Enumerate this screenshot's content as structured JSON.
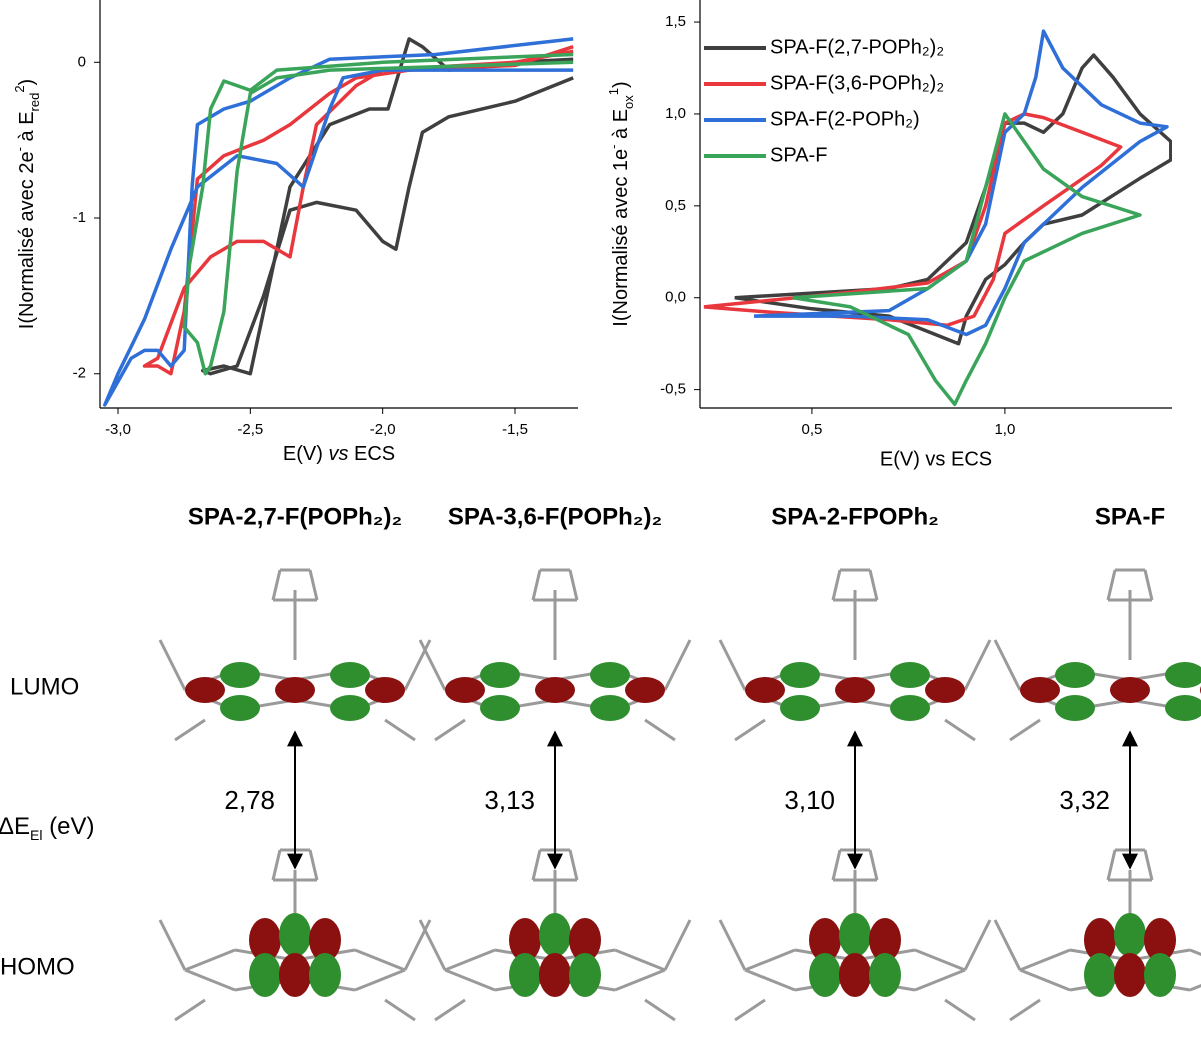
{
  "chart_data": [
    {
      "type": "line",
      "ylabel": [
        "I(Normalisé avec 2e",
        "-",
        " à E",
        "red",
        "2",
        ")"
      ],
      "xlabel": [
        "E(V) ",
        "vs",
        " ECS"
      ],
      "xlim": [
        -3.068,
        -1.262
      ],
      "ylim": [
        -2.22,
        0.4
      ],
      "xticks": [
        {
          "value": -3,
          "label": "-3,0"
        },
        {
          "value": -2.5,
          "label": "-2,5"
        },
        {
          "value": -2,
          "label": "-2,0"
        },
        {
          "value": -1.5,
          "label": "-1,5"
        }
      ],
      "yticks": [
        0,
        -1,
        -2
      ],
      "series": [
        {
          "color": "#3f3f3f",
          "x": [
            -1.28,
            -1.5,
            -1.75,
            -1.85,
            -1.9,
            -1.95,
            -2.0,
            -2.1,
            -2.25,
            -2.35,
            -2.45,
            -2.55,
            -2.65,
            -2.68,
            -2.6,
            -2.5,
            -2.45,
            -2.35,
            -2.2,
            -2.05,
            -1.98,
            -1.9,
            -1.85,
            -1.75,
            -1.5,
            -1.28
          ],
          "values": [
            -0.1,
            -0.25,
            -0.35,
            -0.45,
            -0.8,
            -1.2,
            -1.15,
            -0.95,
            -0.9,
            -0.95,
            -1.5,
            -1.95,
            -2.0,
            -1.98,
            -1.95,
            -2.0,
            -1.6,
            -0.8,
            -0.4,
            -0.3,
            -0.3,
            0.15,
            0.1,
            -0.05,
            0.0,
            0.02
          ]
        },
        {
          "color": "#e8383d",
          "x": [
            -1.28,
            -1.5,
            -1.9,
            -2.1,
            -2.2,
            -2.35,
            -2.45,
            -2.6,
            -2.7,
            -2.75,
            -2.8,
            -2.85,
            -2.9,
            -2.85,
            -2.75,
            -2.65,
            -2.55,
            -2.45,
            -2.35,
            -2.3,
            -2.25,
            -2.1,
            -2.0,
            -1.5,
            -1.28
          ],
          "values": [
            0.1,
            -0.02,
            -0.05,
            -0.1,
            -0.2,
            -0.4,
            -0.5,
            -0.6,
            -0.75,
            -1.6,
            -2.0,
            -1.95,
            -1.95,
            -1.9,
            -1.45,
            -1.25,
            -1.15,
            -1.15,
            -1.25,
            -0.8,
            -0.4,
            -0.15,
            -0.05,
            0.0,
            0.07
          ]
        },
        {
          "color": "#2f6fd8",
          "x": [
            -1.28,
            -2.0,
            -2.15,
            -2.2,
            -2.3,
            -2.4,
            -2.55,
            -2.7,
            -2.8,
            -2.9,
            -3.0,
            -3.05,
            -2.95,
            -2.9,
            -2.85,
            -2.8,
            -2.75,
            -2.72,
            -2.7,
            -2.6,
            -2.5,
            -2.35,
            -2.2,
            -1.8,
            -1.28
          ],
          "values": [
            -0.05,
            -0.05,
            -0.1,
            -0.3,
            -0.8,
            -0.65,
            -0.6,
            -0.8,
            -1.2,
            -1.65,
            -2.0,
            -2.2,
            -1.9,
            -1.85,
            -1.85,
            -1.95,
            -1.85,
            -0.8,
            -0.4,
            -0.3,
            -0.25,
            -0.1,
            0.02,
            0.05,
            0.15
          ]
        },
        {
          "color": "#3aa55a",
          "x": [
            -1.28,
            -2.2,
            -2.4,
            -2.5,
            -2.55,
            -2.6,
            -2.65,
            -2.67,
            -2.7,
            -2.75,
            -2.73,
            -2.68,
            -2.65,
            -2.6,
            -2.55,
            -2.5,
            -2.4,
            -2.0,
            -1.28
          ],
          "values": [
            0.0,
            -0.05,
            -0.1,
            -0.2,
            -0.7,
            -1.6,
            -1.95,
            -2.0,
            -1.8,
            -1.7,
            -1.3,
            -0.8,
            -0.3,
            -0.12,
            -0.15,
            -0.18,
            -0.05,
            0.0,
            0.05
          ]
        }
      ]
    },
    {
      "type": "line",
      "ylabel": [
        "I(Normalisé avec 1e",
        "-",
        " à E",
        "ox",
        "1",
        ")"
      ],
      "xlabel": "E(V) vs ECS",
      "xlim": [
        0.21,
        1.433
      ],
      "ylim": [
        -0.6,
        1.62
      ],
      "xticks": [
        {
          "value": 0.5,
          "label": "0,5"
        },
        {
          "value": 1,
          "label": "1,0"
        }
      ],
      "yticks": [
        {
          "value": 1.5,
          "label": "1,5"
        },
        {
          "value": 1,
          "label": "1,0"
        },
        {
          "value": 0.5,
          "label": "0,5"
        },
        {
          "value": 0,
          "label": "0,0"
        },
        {
          "value": -0.5,
          "label": "-0,5"
        }
      ],
      "legend": "upper left",
      "series": [
        {
          "name": "SPA-F(2,7-POPh₂)₂",
          "color": "#3f3f3f",
          "x": [
            0.3,
            0.7,
            0.8,
            0.9,
            0.95,
            1.0,
            1.05,
            1.1,
            1.15,
            1.2,
            1.23,
            1.28,
            1.35,
            1.43,
            1.43,
            1.35,
            1.2,
            1.1,
            1.05,
            1.0,
            0.95,
            0.9,
            0.88,
            0.82,
            0.7,
            0.5,
            0.3
          ],
          "values": [
            0.0,
            0.05,
            0.1,
            0.3,
            0.6,
            0.95,
            0.95,
            0.9,
            1.0,
            1.25,
            1.32,
            1.2,
            1.0,
            0.85,
            0.75,
            0.65,
            0.45,
            0.4,
            0.3,
            0.18,
            0.1,
            -0.1,
            -0.25,
            -0.2,
            -0.1,
            -0.06,
            0.0
          ]
        },
        {
          "name": "SPA-F(3,6-POPh₂)₂",
          "color": "#e8383d",
          "x": [
            0.22,
            0.6,
            0.8,
            0.9,
            0.95,
            1.0,
            1.05,
            1.1,
            1.2,
            1.3,
            1.25,
            1.1,
            1.0,
            0.97,
            0.92,
            0.85,
            0.7,
            0.4,
            0.22
          ],
          "values": [
            -0.05,
            0.03,
            0.08,
            0.2,
            0.5,
            0.95,
            1.0,
            0.98,
            0.9,
            0.82,
            0.72,
            0.5,
            0.35,
            0.1,
            -0.1,
            -0.15,
            -0.12,
            -0.08,
            -0.05
          ]
        },
        {
          "name": "SPA-F(2-POPh₂)",
          "color": "#2f6fd8",
          "x": [
            0.35,
            0.7,
            0.8,
            0.9,
            0.95,
            1.0,
            1.05,
            1.08,
            1.1,
            1.15,
            1.25,
            1.35,
            1.42,
            1.35,
            1.2,
            1.05,
            1.0,
            0.95,
            0.9,
            0.8,
            0.6,
            0.35
          ],
          "values": [
            -0.1,
            -0.07,
            0.05,
            0.2,
            0.4,
            0.9,
            1.0,
            1.2,
            1.45,
            1.25,
            1.05,
            0.95,
            0.93,
            0.85,
            0.6,
            0.3,
            0.05,
            -0.15,
            -0.2,
            -0.12,
            -0.1,
            -0.1
          ]
        },
        {
          "name": "SPA-F",
          "color": "#3aa55a",
          "x": [
            0.45,
            0.8,
            0.9,
            0.95,
            1.0,
            1.05,
            1.1,
            1.2,
            1.35,
            1.2,
            1.05,
            1.0,
            0.95,
            0.9,
            0.87,
            0.82,
            0.75,
            0.6,
            0.45
          ],
          "values": [
            0.0,
            0.05,
            0.2,
            0.6,
            1.0,
            0.85,
            0.7,
            0.55,
            0.45,
            0.35,
            0.2,
            0.0,
            -0.25,
            -0.45,
            -0.58,
            -0.45,
            -0.2,
            -0.05,
            0.0
          ]
        }
      ]
    }
  ],
  "orbitals": {
    "compounds": [
      {
        "name": "SPA-2,7-F(POPh₂)₂",
        "color": "#000000"
      },
      {
        "name": "SPA-3,6-F(POPh₂)₂",
        "color": "#e0262b"
      },
      {
        "name": "SPA-2-FPOPh₂",
        "color": "#3a70b0"
      },
      {
        "name": "SPA-F",
        "color": "#2aa050"
      }
    ],
    "lumo": "LUMO",
    "gap_label": [
      "ΔE",
      "El",
      " (eV)"
    ],
    "homo": "HOMO",
    "gaps": [
      "2,78",
      "3,13",
      "3,10",
      "3,32"
    ]
  }
}
